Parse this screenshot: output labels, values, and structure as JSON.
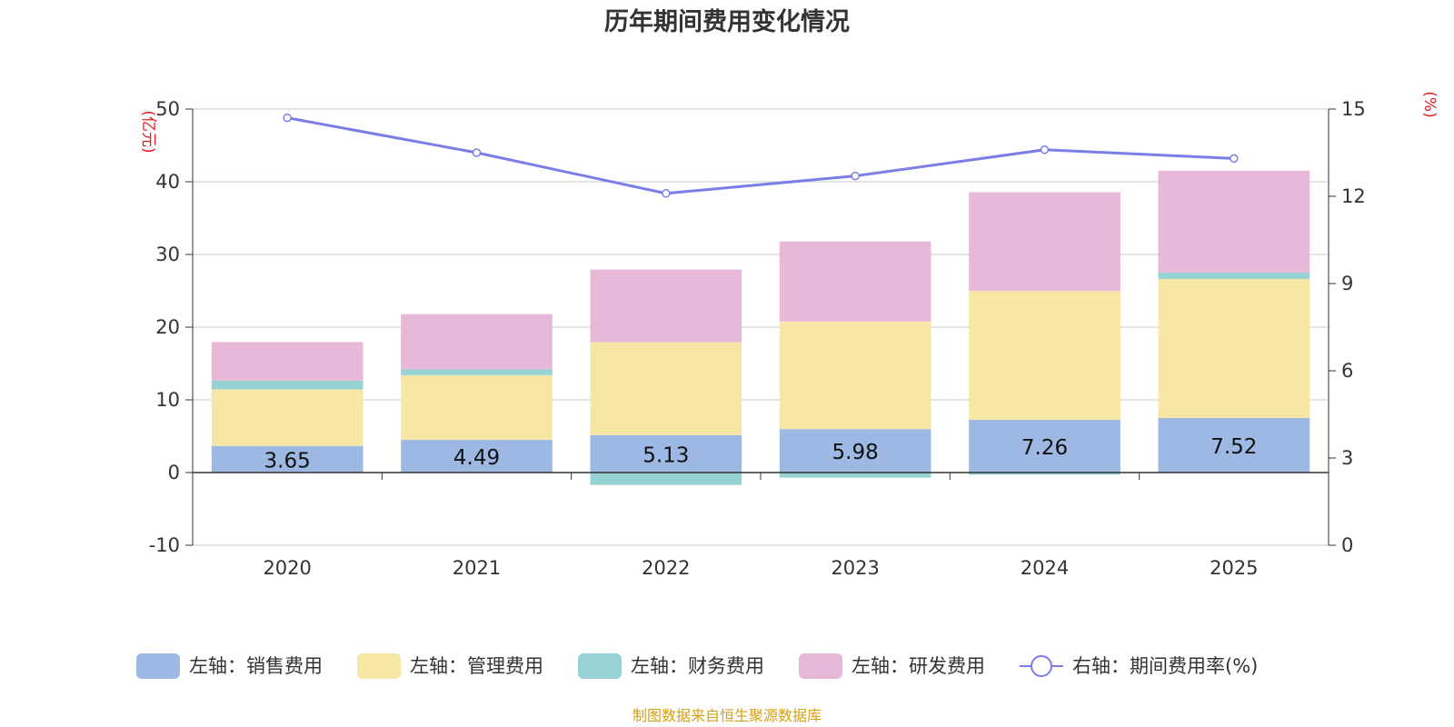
{
  "chart_data": {
    "type": "bar",
    "title": "历年期间费用变化情况",
    "categories": [
      "2020",
      "2021",
      "2022",
      "2023",
      "2024",
      "2025"
    ],
    "left_axis": {
      "unit": "(亿元)",
      "ylim": [
        -10,
        50
      ],
      "ticks": [
        "-10",
        "0",
        "10",
        "20",
        "30",
        "40",
        "50"
      ]
    },
    "right_axis": {
      "unit": "(%)",
      "ylim": [
        0,
        15
      ],
      "ticks": [
        "0",
        "3",
        "6",
        "9",
        "12",
        "15"
      ]
    },
    "series": [
      {
        "name": "左轴：销售费用",
        "axis": "left",
        "type": "bar",
        "stack": true,
        "color": "#9cb8e3",
        "values": [
          3.65,
          4.49,
          5.13,
          5.98,
          7.26,
          7.52
        ],
        "labels": [
          "3.65",
          "4.49",
          "5.13",
          "5.98",
          "7.26",
          "7.52"
        ]
      },
      {
        "name": "左轴：管理费用",
        "axis": "left",
        "type": "bar",
        "stack": true,
        "color": "#f7e7a6",
        "values": [
          7.8,
          8.9,
          12.8,
          14.8,
          17.7,
          19.1
        ]
      },
      {
        "name": "左轴：财务费用",
        "axis": "left",
        "type": "bar",
        "stack": true,
        "color": "#97d3d4",
        "values": [
          1.2,
          0.8,
          -1.7,
          -0.7,
          -0.3,
          0.9
        ]
      },
      {
        "name": "左轴：研发费用",
        "axis": "left",
        "type": "bar",
        "stack": true,
        "color": "#e8b8d9",
        "values": [
          5.3,
          7.6,
          10.0,
          11.0,
          13.6,
          14.0
        ]
      },
      {
        "name": "右轴：期间费用率(%)",
        "axis": "right",
        "type": "line",
        "color": "#7b7ee8",
        "values": [
          14.7,
          13.5,
          12.1,
          12.7,
          13.6,
          13.3
        ]
      }
    ],
    "grid": true,
    "legend_position": "bottom"
  },
  "source_note": "制图数据来自恒生聚源数据库"
}
